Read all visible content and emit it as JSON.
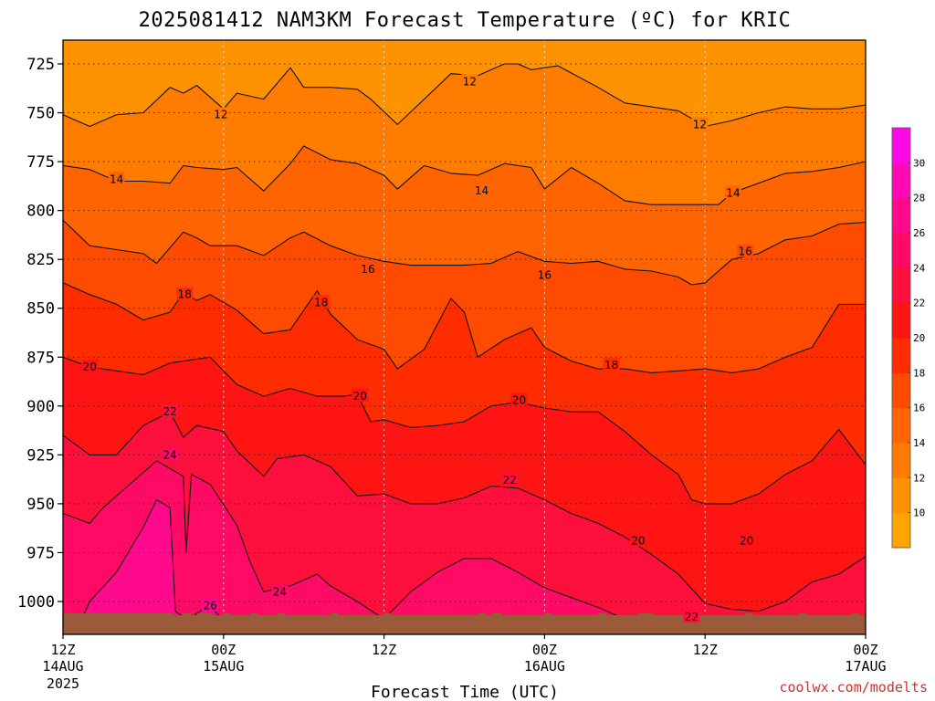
{
  "chart_data": {
    "type": "heatmap",
    "title": "2025081412 NAM3KM Forecast Temperature (ºC) for KRIC",
    "xlabel": "Forecast Time (UTC)",
    "ylabel": "",
    "credit": "coolwx.com/modelts",
    "x_ticks": [
      {
        "hour": 0,
        "label": "12Z",
        "sub": "14AUG",
        "sub2": "2025"
      },
      {
        "hour": 12,
        "label": "00Z",
        "sub": "15AUG",
        "sub2": ""
      },
      {
        "hour": 24,
        "label": "12Z",
        "sub": "",
        "sub2": ""
      },
      {
        "hour": 36,
        "label": "00Z",
        "sub": "16AUG",
        "sub2": ""
      },
      {
        "hour": 48,
        "label": "12Z",
        "sub": "",
        "sub2": ""
      },
      {
        "hour": 60,
        "label": "00Z",
        "sub": "17AUG",
        "sub2": ""
      }
    ],
    "xlim": [
      0,
      60
    ],
    "y_ticks": [
      725,
      750,
      775,
      800,
      825,
      850,
      875,
      900,
      925,
      950,
      975,
      1000
    ],
    "ylim": [
      712,
      1018
    ],
    "y_scale": "pressure (inverted)",
    "colorbar": {
      "levels": [
        8,
        10,
        12,
        14,
        16,
        18,
        20,
        22,
        24,
        26,
        28,
        30,
        32
      ],
      "labels": [
        10,
        12,
        14,
        16,
        18,
        20,
        22,
        24,
        26,
        28,
        30
      ],
      "colors": [
        "#ffa500",
        "#ff9200",
        "#ff7c00",
        "#ff6400",
        "#ff4b00",
        "#ff2c00",
        "#ff1414",
        "#ff0f3c",
        "#ff0a64",
        "#ff0a8c",
        "#ff0ab4",
        "#ff0ae6"
      ]
    },
    "contour_levels": [
      12,
      14,
      16,
      18,
      20,
      22,
      24,
      26
    ],
    "contour_labels": [
      {
        "value": "12",
        "hour": 11.8,
        "p": 751
      },
      {
        "value": "12",
        "hour": 30.4,
        "p": 734
      },
      {
        "value": "12",
        "hour": 47.6,
        "p": 756
      },
      {
        "value": "14",
        "hour": 4.0,
        "p": 784
      },
      {
        "value": "14",
        "hour": 31.3,
        "p": 790
      },
      {
        "value": "14",
        "hour": 50.1,
        "p": 791
      },
      {
        "value": "16",
        "hour": 22.8,
        "p": 830
      },
      {
        "value": "16",
        "hour": 36.0,
        "p": 833
      },
      {
        "value": "16",
        "hour": 51.0,
        "p": 821
      },
      {
        "value": "18",
        "hour": 9.1,
        "p": 843
      },
      {
        "value": "18",
        "hour": 19.3,
        "p": 847
      },
      {
        "value": "18",
        "hour": 41.0,
        "p": 879
      },
      {
        "value": "20",
        "hour": 2.0,
        "p": 880
      },
      {
        "value": "20",
        "hour": 22.2,
        "p": 895
      },
      {
        "value": "20",
        "hour": 34.1,
        "p": 897
      },
      {
        "value": "20",
        "hour": 43.0,
        "p": 969
      },
      {
        "value": "20",
        "hour": 51.1,
        "p": 969
      },
      {
        "value": "22",
        "hour": 8.0,
        "p": 903
      },
      {
        "value": "22",
        "hour": 33.4,
        "p": 938
      },
      {
        "value": "22",
        "hour": 47.0,
        "p": 1008
      },
      {
        "value": "24",
        "hour": 8.0,
        "p": 925
      },
      {
        "value": "24",
        "hour": 16.2,
        "p": 995
      },
      {
        "value": "26",
        "hour": 11.0,
        "p": 1002
      }
    ],
    "contours": [
      {
        "level": 12,
        "points": [
          [
            0,
            751
          ],
          [
            2,
            757
          ],
          [
            4,
            751
          ],
          [
            6,
            750
          ],
          [
            8,
            737
          ],
          [
            9,
            740
          ],
          [
            10,
            736
          ],
          [
            12,
            748
          ],
          [
            13,
            740
          ],
          [
            15,
            743
          ],
          [
            17,
            727
          ],
          [
            18,
            737
          ],
          [
            20,
            737
          ],
          [
            22,
            738
          ],
          [
            23,
            743
          ],
          [
            25,
            756
          ],
          [
            27,
            743
          ],
          [
            29,
            730
          ],
          [
            31,
            731
          ],
          [
            33,
            725
          ],
          [
            34,
            725
          ],
          [
            35,
            728
          ],
          [
            37,
            726
          ],
          [
            40,
            737
          ],
          [
            42,
            745
          ],
          [
            44,
            747
          ],
          [
            46,
            749
          ],
          [
            48,
            757
          ],
          [
            50,
            754
          ],
          [
            52,
            750
          ],
          [
            54,
            747
          ],
          [
            56,
            748
          ],
          [
            58,
            748
          ],
          [
            60,
            746
          ]
        ]
      },
      {
        "level": 14,
        "points": [
          [
            0,
            777
          ],
          [
            2,
            779
          ],
          [
            4,
            785
          ],
          [
            6,
            785
          ],
          [
            8,
            786
          ],
          [
            9,
            777
          ],
          [
            10,
            778
          ],
          [
            12,
            779
          ],
          [
            13,
            778
          ],
          [
            15,
            790
          ],
          [
            17,
            776
          ],
          [
            18,
            767
          ],
          [
            20,
            774
          ],
          [
            22,
            776
          ],
          [
            24,
            782
          ],
          [
            25,
            789
          ],
          [
            27,
            777
          ],
          [
            29,
            781
          ],
          [
            31,
            782
          ],
          [
            33,
            776
          ],
          [
            35,
            778
          ],
          [
            36,
            789
          ],
          [
            38,
            778
          ],
          [
            40,
            786
          ],
          [
            42,
            795
          ],
          [
            44,
            797
          ],
          [
            46,
            797
          ],
          [
            48,
            797
          ],
          [
            49,
            797
          ],
          [
            50,
            791
          ],
          [
            52,
            786
          ],
          [
            54,
            781
          ],
          [
            56,
            780
          ],
          [
            58,
            778
          ],
          [
            60,
            775
          ]
        ]
      },
      {
        "level": 16,
        "points": [
          [
            0,
            805
          ],
          [
            2,
            818
          ],
          [
            4,
            820
          ],
          [
            6,
            822
          ],
          [
            7,
            827
          ],
          [
            9,
            811
          ],
          [
            10,
            814
          ],
          [
            11,
            818
          ],
          [
            13,
            818
          ],
          [
            15,
            823
          ],
          [
            17,
            814
          ],
          [
            18,
            811
          ],
          [
            20,
            818
          ],
          [
            22,
            823
          ],
          [
            24,
            826
          ],
          [
            26,
            828
          ],
          [
            28,
            828
          ],
          [
            30,
            828
          ],
          [
            32,
            827
          ],
          [
            34,
            821
          ],
          [
            36,
            826
          ],
          [
            38,
            827
          ],
          [
            40,
            826
          ],
          [
            42,
            830
          ],
          [
            44,
            831
          ],
          [
            46,
            834
          ],
          [
            47,
            838
          ],
          [
            48,
            837
          ],
          [
            50,
            825
          ],
          [
            52,
            822
          ],
          [
            54,
            815
          ],
          [
            56,
            813
          ],
          [
            58,
            807
          ],
          [
            60,
            806
          ]
        ]
      },
      {
        "level": 18,
        "points": [
          [
            0,
            837
          ],
          [
            2,
            843
          ],
          [
            4,
            848
          ],
          [
            6,
            856
          ],
          [
            8,
            852
          ],
          [
            9,
            842
          ],
          [
            10,
            846
          ],
          [
            11,
            843
          ],
          [
            13,
            851
          ],
          [
            15,
            863
          ],
          [
            17,
            861
          ],
          [
            18,
            851
          ],
          [
            19,
            841
          ],
          [
            20,
            853
          ],
          [
            22,
            866
          ],
          [
            24,
            871
          ],
          [
            25,
            881
          ],
          [
            27,
            871
          ],
          [
            29,
            845
          ],
          [
            30,
            852
          ],
          [
            31,
            875
          ],
          [
            33,
            866
          ],
          [
            35,
            860
          ],
          [
            36,
            870
          ],
          [
            38,
            877
          ],
          [
            40,
            881
          ],
          [
            42,
            881
          ],
          [
            44,
            883
          ],
          [
            46,
            882
          ],
          [
            48,
            881
          ],
          [
            50,
            883
          ],
          [
            52,
            881
          ],
          [
            54,
            875
          ],
          [
            56,
            870
          ],
          [
            58,
            848
          ],
          [
            60,
            848
          ]
        ]
      },
      {
        "level": 20,
        "points": [
          [
            0,
            875
          ],
          [
            2,
            880
          ],
          [
            4,
            882
          ],
          [
            6,
            884
          ],
          [
            8,
            878
          ],
          [
            10,
            876
          ],
          [
            11,
            875
          ],
          [
            13,
            889
          ],
          [
            15,
            895
          ],
          [
            17,
            891
          ],
          [
            19,
            895
          ],
          [
            21,
            895
          ],
          [
            22,
            894
          ],
          [
            23,
            908
          ],
          [
            24,
            907
          ],
          [
            26,
            911
          ],
          [
            28,
            910
          ],
          [
            30,
            908
          ],
          [
            32,
            900
          ],
          [
            34,
            898
          ],
          [
            36,
            901
          ],
          [
            38,
            903
          ],
          [
            40,
            903
          ],
          [
            42,
            913
          ],
          [
            44,
            925
          ],
          [
            46,
            935
          ],
          [
            47,
            948
          ],
          [
            48,
            950
          ],
          [
            50,
            950
          ],
          [
            52,
            945
          ],
          [
            54,
            935
          ],
          [
            56,
            928
          ],
          [
            58,
            912
          ],
          [
            60,
            930
          ]
        ]
      },
      {
        "level": 22,
        "points": [
          [
            0,
            915
          ],
          [
            2,
            925
          ],
          [
            4,
            925
          ],
          [
            6,
            910
          ],
          [
            8,
            903
          ],
          [
            9,
            916
          ],
          [
            10,
            910
          ],
          [
            12,
            913
          ],
          [
            13,
            923
          ],
          [
            15,
            936
          ],
          [
            16,
            927
          ],
          [
            18,
            925
          ],
          [
            20,
            931
          ],
          [
            22,
            946
          ],
          [
            24,
            945
          ],
          [
            26,
            950
          ],
          [
            28,
            950
          ],
          [
            30,
            947
          ],
          [
            32,
            941
          ],
          [
            34,
            942
          ],
          [
            36,
            948
          ],
          [
            38,
            955
          ],
          [
            40,
            960
          ],
          [
            42,
            967
          ],
          [
            44,
            976
          ],
          [
            46,
            986
          ],
          [
            48,
            1001
          ],
          [
            50,
            1004
          ],
          [
            52,
            1005
          ],
          [
            54,
            1000
          ],
          [
            56,
            990
          ],
          [
            58,
            986
          ],
          [
            60,
            977
          ]
        ]
      },
      {
        "level": 24,
        "points": [
          [
            0,
            955
          ],
          [
            2,
            960
          ],
          [
            3,
            952
          ],
          [
            5,
            940
          ],
          [
            7,
            928
          ],
          [
            8,
            932
          ],
          [
            9,
            936
          ],
          [
            9.2,
            975
          ],
          [
            9.6,
            935
          ],
          [
            11,
            940
          ],
          [
            13,
            961
          ],
          [
            14,
            980
          ],
          [
            15,
            995
          ],
          [
            17,
            992
          ],
          [
            19,
            986
          ],
          [
            20,
            992
          ],
          [
            22,
            1000
          ],
          [
            24,
            1009
          ],
          [
            26,
            995
          ],
          [
            28,
            985
          ],
          [
            30,
            978
          ],
          [
            32,
            978
          ],
          [
            34,
            985
          ],
          [
            36,
            993
          ],
          [
            38,
            998
          ],
          [
            40,
            1003
          ],
          [
            42,
            1009
          ],
          [
            44,
            1015
          ]
        ]
      },
      {
        "level": 26,
        "points": [
          [
            0.8,
            1018
          ],
          [
            2,
            1000
          ],
          [
            4,
            985
          ],
          [
            6,
            962
          ],
          [
            7,
            948
          ],
          [
            8,
            952
          ],
          [
            8.4,
            1005
          ],
          [
            9.4,
            1010
          ],
          [
            10,
            1006
          ],
          [
            11,
            1002
          ],
          [
            12,
            1010
          ],
          [
            13,
            1018
          ]
        ]
      }
    ]
  }
}
